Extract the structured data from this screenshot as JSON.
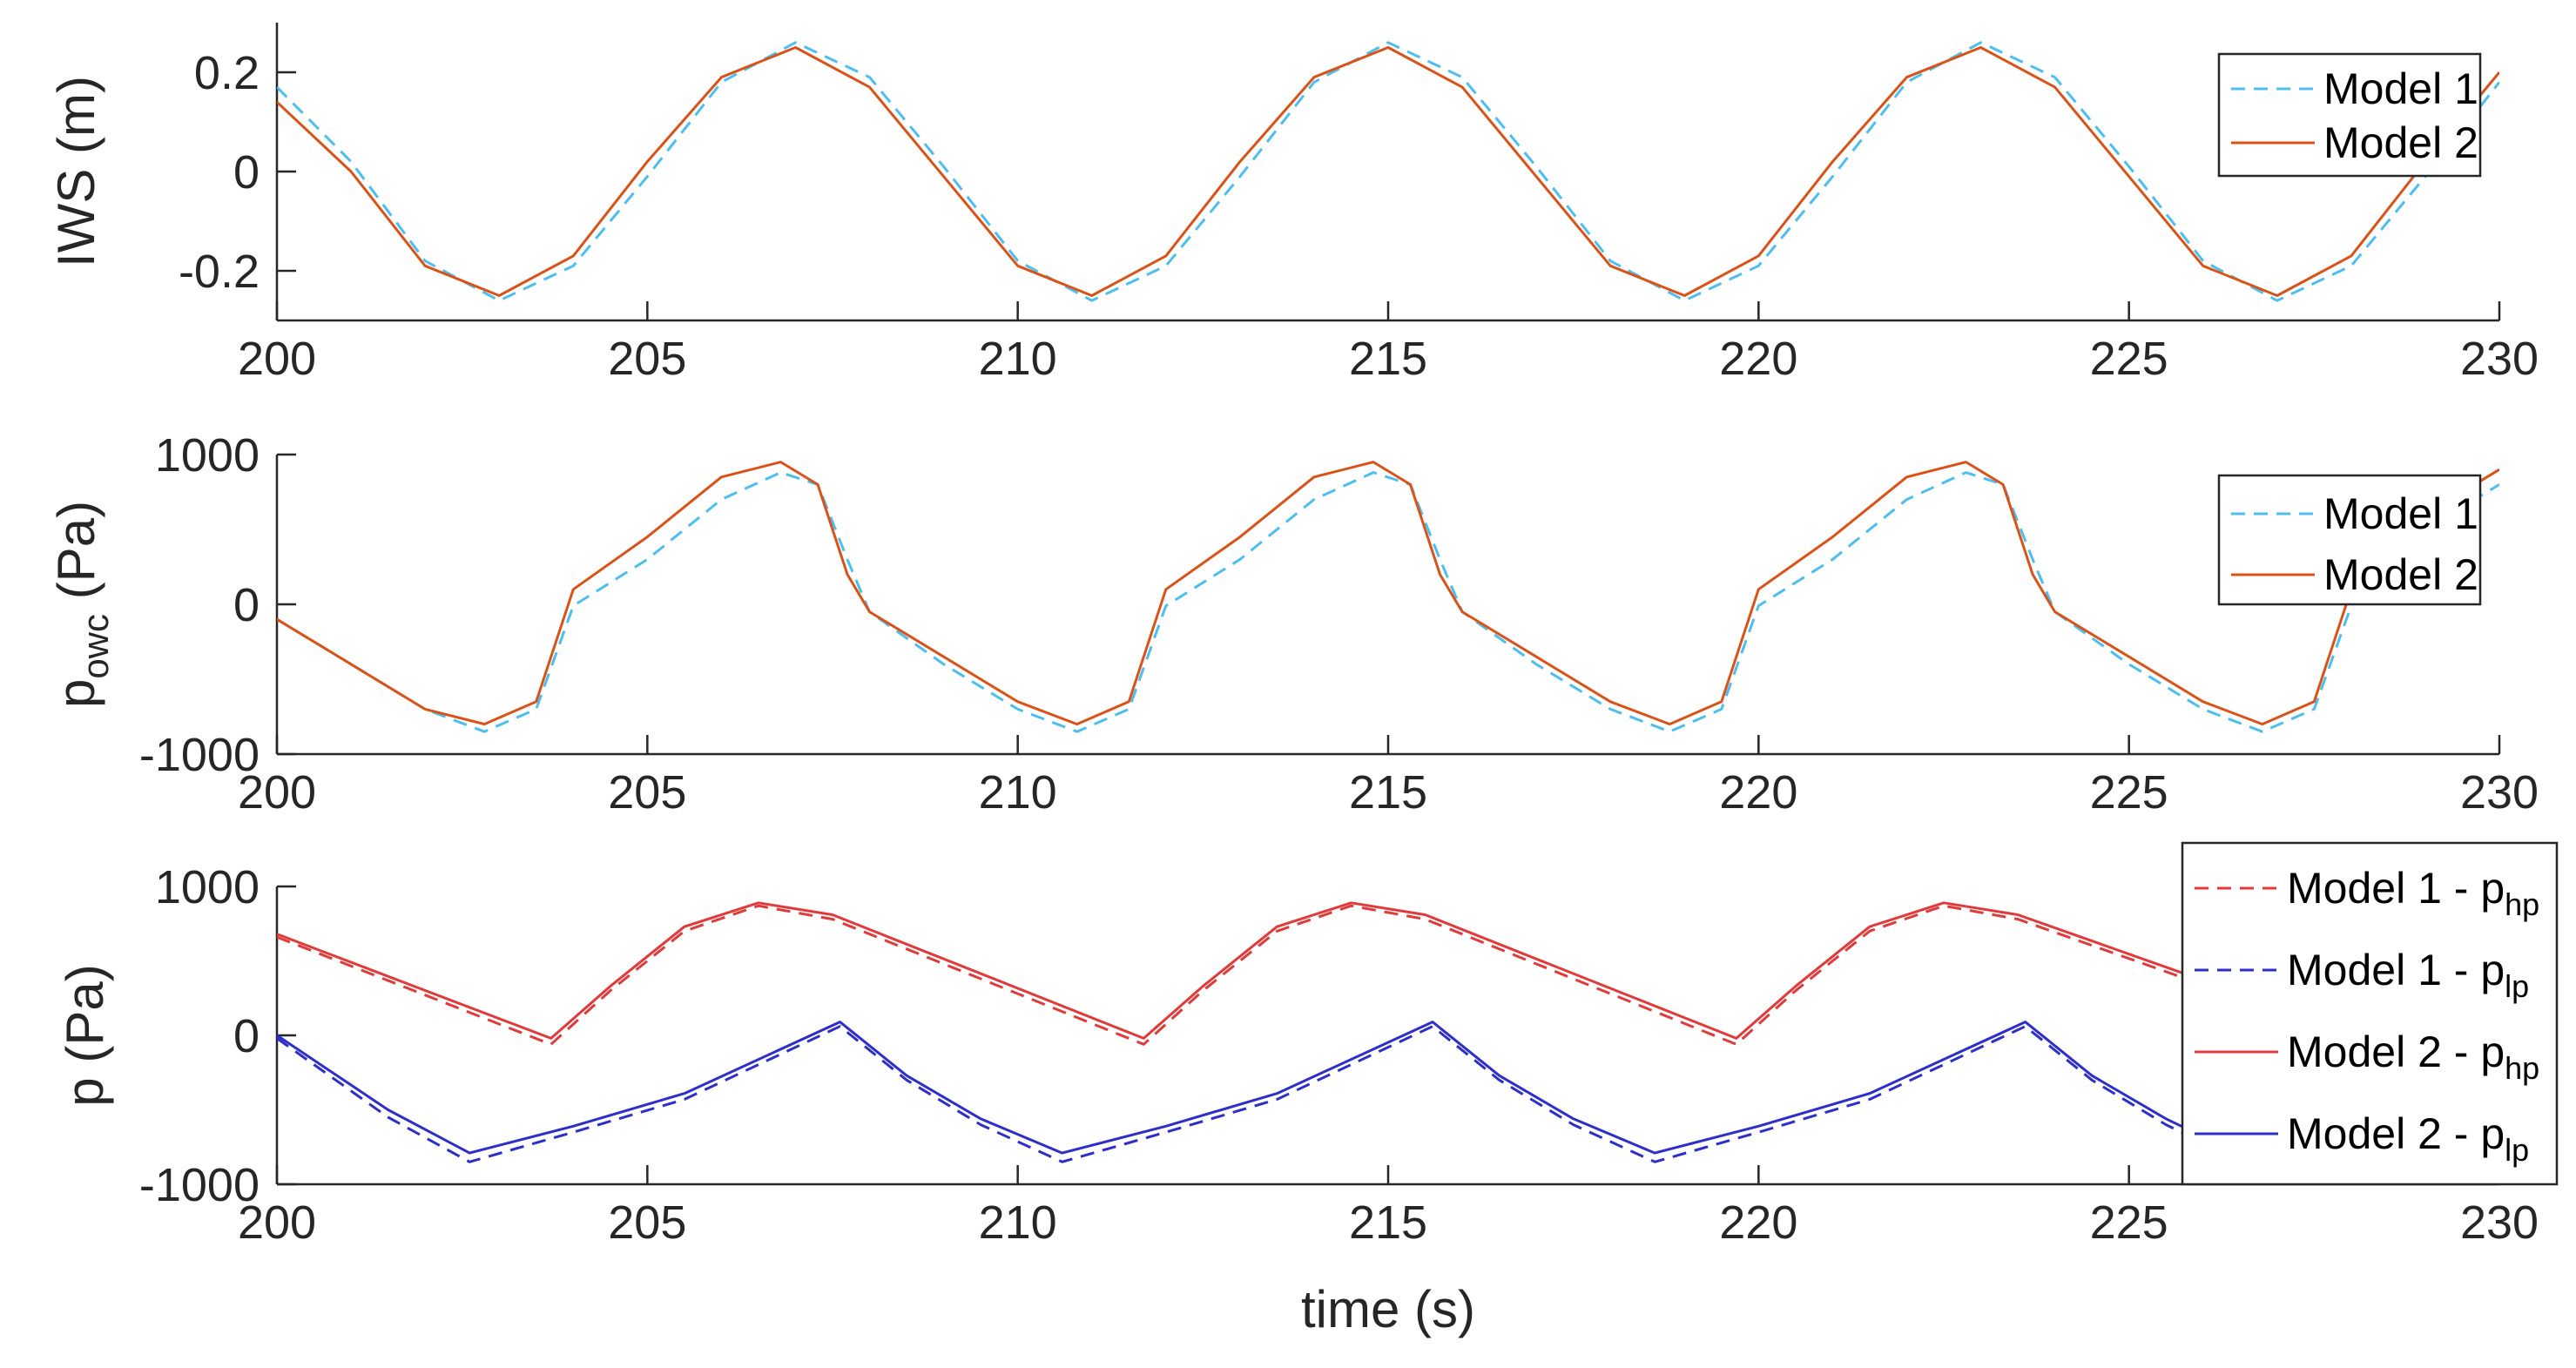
{
  "colors": {
    "model1_blue_dash": "#4DBEEE",
    "model2_orange": "#D95319",
    "hp_red": "#E03A3A",
    "lp_blue": "#2E2EC8",
    "axis": "#262626"
  },
  "chart_data": [
    {
      "type": "line",
      "xlabel": "",
      "ylabel": "IWS (m)",
      "xlim": [
        200,
        230
      ],
      "ylim": [
        -0.3,
        0.3
      ],
      "xticks": [
        "200",
        "205",
        "210",
        "215",
        "220",
        "225",
        "230"
      ],
      "yticks": [
        {
          "v": -0.2,
          "t": "-0.2"
        },
        {
          "v": 0,
          "t": "0"
        },
        {
          "v": 0.2,
          "t": "0.2"
        }
      ],
      "legend": "top-right",
      "series": [
        {
          "name": "Model 1",
          "style": "dashed",
          "color": "#4DBEEE",
          "x": [
            200,
            201,
            202,
            203,
            204,
            205,
            206,
            207,
            208,
            209,
            210,
            211,
            212,
            213,
            214,
            215,
            216,
            217,
            218,
            219,
            220,
            221,
            222,
            223,
            224,
            225,
            226,
            227,
            228,
            229,
            230
          ],
          "y": [
            0.17,
            0.02,
            -0.18,
            -0.26,
            -0.19,
            -0.01,
            0.18,
            0.26,
            0.19,
            0.01,
            -0.18,
            -0.26,
            -0.19,
            -0.01,
            0.18,
            0.26,
            0.19,
            0.01,
            -0.18,
            -0.26,
            -0.19,
            -0.01,
            0.18,
            0.26,
            0.19,
            0.01,
            -0.18,
            -0.26,
            -0.19,
            -0.01,
            0.18
          ]
        },
        {
          "name": "Model 2",
          "style": "solid",
          "color": "#D95319",
          "x": [
            200,
            201,
            202,
            203,
            204,
            205,
            206,
            207,
            208,
            209,
            210,
            211,
            212,
            213,
            214,
            215,
            216,
            217,
            218,
            219,
            220,
            221,
            222,
            223,
            224,
            225,
            226,
            227,
            228,
            229,
            230
          ],
          "y": [
            0.14,
            0.0,
            -0.19,
            -0.25,
            -0.17,
            0.02,
            0.19,
            0.25,
            0.17,
            -0.01,
            -0.19,
            -0.25,
            -0.17,
            0.02,
            0.19,
            0.25,
            0.17,
            -0.01,
            -0.19,
            -0.25,
            -0.17,
            0.02,
            0.19,
            0.25,
            0.17,
            -0.01,
            -0.19,
            -0.25,
            -0.17,
            0.02,
            0.2
          ]
        }
      ]
    },
    {
      "type": "line",
      "xlabel": "",
      "ylabel": "p_owc (Pa)",
      "ylabel_main": "p",
      "ylabel_sub": "owc",
      "ylabel_unit": " (Pa)",
      "xlim": [
        200,
        230
      ],
      "ylim": [
        -1000,
        1000
      ],
      "xticks": [
        "200",
        "205",
        "210",
        "215",
        "220",
        "225",
        "230"
      ],
      "yticks": [
        {
          "v": -1000,
          "t": "-1000"
        },
        {
          "v": 0,
          "t": "0"
        },
        {
          "v": 1000,
          "t": "1000"
        }
      ],
      "legend": "top-right",
      "series": [
        {
          "name": "Model 1",
          "style": "dashed",
          "color": "#4DBEEE",
          "x": [
            200,
            201,
            202,
            202.8,
            203.5,
            204,
            205,
            206,
            206.8,
            207.3,
            207.7,
            208,
            209,
            210,
            210.8,
            211.5,
            212,
            213,
            214,
            214.8,
            215.3,
            215.7,
            216,
            217,
            218,
            218.8,
            219.5,
            220,
            221,
            222,
            222.8,
            223.3,
            223.7,
            224,
            225,
            226,
            226.8,
            227.5,
            228,
            229,
            230
          ],
          "y": [
            -100,
            -400,
            -700,
            -850,
            -700,
            -10,
            300,
            700,
            880,
            800,
            300,
            -50,
            -400,
            -700,
            -850,
            -700,
            -10,
            300,
            700,
            880,
            800,
            300,
            -50,
            -400,
            -700,
            -850,
            -700,
            -10,
            300,
            700,
            880,
            800,
            300,
            -50,
            -400,
            -700,
            -850,
            -700,
            -10,
            500,
            800
          ]
        },
        {
          "name": "Model 2",
          "style": "solid",
          "color": "#D95319",
          "x": [
            200,
            201,
            202,
            202.8,
            203.5,
            204,
            205,
            206,
            206.8,
            207.3,
            207.7,
            208,
            209,
            210,
            210.8,
            211.5,
            212,
            213,
            214,
            214.8,
            215.3,
            215.7,
            216,
            217,
            218,
            218.8,
            219.5,
            220,
            221,
            222,
            222.8,
            223.3,
            223.7,
            224,
            225,
            226,
            226.8,
            227.5,
            228,
            229,
            230
          ],
          "y": [
            -100,
            -400,
            -700,
            -800,
            -650,
            100,
            450,
            850,
            950,
            800,
            200,
            -50,
            -350,
            -650,
            -800,
            -650,
            100,
            450,
            850,
            950,
            800,
            200,
            -50,
            -350,
            -650,
            -800,
            -650,
            100,
            450,
            850,
            950,
            800,
            200,
            -50,
            -350,
            -650,
            -800,
            -650,
            100,
            600,
            900
          ]
        }
      ]
    },
    {
      "type": "line",
      "xlabel": "time (s)",
      "ylabel": "p (Pa)",
      "xlim": [
        200,
        230
      ],
      "ylim": [
        -1000,
        1000
      ],
      "xticks": [
        "200",
        "205",
        "210",
        "215",
        "220",
        "225",
        "230"
      ],
      "yticks": [
        {
          "v": -1000,
          "t": "-1000"
        },
        {
          "v": 0,
          "t": "0"
        },
        {
          "v": 1000,
          "t": "1000"
        }
      ],
      "legend": "top-right",
      "series": [
        {
          "name": "Model 1 - p_hp",
          "label_main": "Model 1 - p",
          "label_sub": "hp",
          "style": "dashed",
          "color": "#E03A3A",
          "x": [
            200,
            203.7,
            204.5,
            205.5,
            206.5,
            207.5,
            211.7,
            212.5,
            213.5,
            214.5,
            215.5,
            219.7,
            220.5,
            221.5,
            222.5,
            223.5,
            226
          ],
          "y": [
            660,
            -60,
            300,
            700,
            870,
            780,
            -60,
            300,
            700,
            870,
            780,
            -60,
            300,
            700,
            870,
            780,
            340
          ]
        },
        {
          "name": "Model 1 - p_lp",
          "label_main": "Model 1 - p",
          "label_sub": "lp",
          "style": "dashed",
          "color": "#2E2EC8",
          "x": [
            200,
            201.5,
            202.6,
            204,
            205.5,
            207.6,
            208.5,
            209.5,
            210.6,
            212,
            213.5,
            215.6,
            216.5,
            217.5,
            218.6,
            220,
            221.5,
            223.6,
            224.5,
            225.5,
            226
          ],
          "y": [
            -20,
            -550,
            -850,
            -650,
            -430,
            60,
            -300,
            -600,
            -850,
            -650,
            -430,
            60,
            -300,
            -600,
            -850,
            -650,
            -430,
            60,
            -300,
            -600,
            -720
          ]
        },
        {
          "name": "Model 2 - p_hp",
          "label_main": "Model 2 - p",
          "label_sub": "hp",
          "style": "solid",
          "color": "#E03A3A",
          "x": [
            200,
            203.7,
            204.5,
            205.5,
            206.5,
            207.5,
            211.7,
            212.5,
            213.5,
            214.5,
            215.5,
            219.7,
            220.5,
            221.5,
            222.5,
            223.5,
            226
          ],
          "y": [
            680,
            -20,
            330,
            730,
            890,
            810,
            -20,
            330,
            730,
            890,
            810,
            -20,
            330,
            730,
            890,
            810,
            370
          ]
        },
        {
          "name": "Model 2 - p_lp",
          "label_main": "Model 2 - p",
          "label_sub": "lp",
          "style": "solid",
          "color": "#2E2EC8",
          "x": [
            200,
            201.5,
            202.6,
            204,
            205.5,
            207.6,
            208.5,
            209.5,
            210.6,
            212,
            213.5,
            215.6,
            216.5,
            217.5,
            218.6,
            220,
            221.5,
            223.6,
            224.5,
            225.5,
            226
          ],
          "y": [
            0,
            -500,
            -790,
            -610,
            -390,
            90,
            -270,
            -560,
            -790,
            -610,
            -390,
            90,
            -270,
            -560,
            -790,
            -610,
            -390,
            90,
            -270,
            -560,
            -680
          ]
        }
      ]
    }
  ]
}
